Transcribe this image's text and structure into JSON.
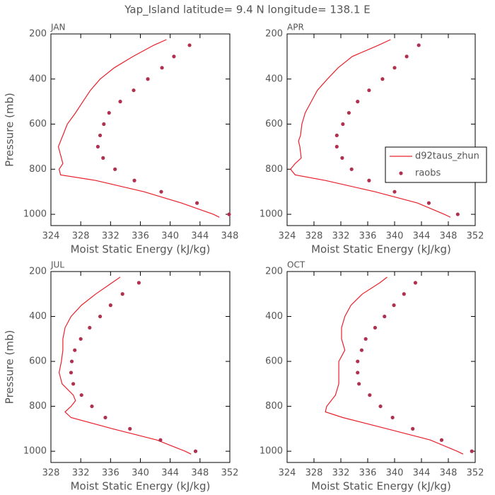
{
  "title": "Yap_Island  latitude= 9.4 N longitude= 138.1 E",
  "chart_data": [
    {
      "type": "line",
      "title": "JAN",
      "xlabel": "Moist Static Energy (kJ/kg)",
      "ylabel": "Pressure (mb)",
      "xlim": [
        324,
        348
      ],
      "xticks": [
        324,
        328,
        332,
        336,
        340,
        344,
        348
      ],
      "ylim": [
        1050,
        200
      ],
      "yticks": [
        200,
        400,
        600,
        800,
        1000
      ],
      "series": [
        {
          "style": "line",
          "color": "#e8202a",
          "x": [
            339.5,
            337.8,
            335.0,
            332.5,
            330.6,
            329.3,
            328.3,
            327.3,
            326.2,
            325.6,
            325.0,
            325.4,
            325.6,
            325.1,
            325.3,
            330.0,
            336.5,
            341.5,
            345.8,
            346.6
          ],
          "y": [
            225,
            250,
            300,
            350,
            400,
            450,
            500,
            550,
            600,
            650,
            700,
            750,
            775,
            800,
            825,
            850,
            900,
            950,
            1000,
            1013
          ]
        },
        {
          "style": "dots",
          "color": "#b03050",
          "x": [
            342.6,
            340.5,
            338.9,
            337.0,
            335.1,
            333.3,
            331.8,
            331.1,
            330.6,
            330.3,
            331.0,
            332.6,
            335.2,
            338.8,
            343.6,
            347.9
          ],
          "y": [
            250,
            300,
            350,
            400,
            450,
            500,
            550,
            600,
            650,
            700,
            750,
            800,
            850,
            900,
            950,
            1000
          ]
        }
      ]
    },
    {
      "type": "line",
      "title": "APR",
      "xlabel": "Moist Static Energy (kJ/kg)",
      "xlim": [
        324,
        352
      ],
      "xticks": [
        324,
        328,
        332,
        336,
        340,
        344,
        348,
        352
      ],
      "ylim": [
        1050,
        200
      ],
      "yticks": [
        200,
        400,
        600,
        800,
        1000
      ],
      "legend": "right",
      "series": [
        {
          "name": "d92taus_zhun",
          "style": "line",
          "color": "#e8202a",
          "x": [
            339.4,
            337.6,
            333.7,
            331.6,
            330.0,
            328.5,
            327.6,
            326.7,
            326.2,
            326.0,
            325.7,
            325.9,
            326.1,
            325.2,
            324.5,
            325.2,
            329.7,
            337.1,
            343.4,
            347.4,
            348.3
          ],
          "y": [
            225,
            250,
            300,
            350,
            400,
            450,
            500,
            550,
            600,
            650,
            675,
            700,
            750,
            775,
            800,
            825,
            850,
            900,
            950,
            1000,
            1013
          ]
        },
        {
          "name": "raobs",
          "style": "dots",
          "color": "#b03050",
          "x": [
            343.6,
            341.8,
            340.0,
            338.2,
            336.2,
            334.5,
            333.2,
            332.3,
            331.4,
            331.4,
            332.2,
            333.6,
            336.2,
            340.0,
            345.1,
            349.4
          ],
          "y": [
            250,
            300,
            350,
            400,
            450,
            500,
            550,
            600,
            650,
            700,
            750,
            800,
            850,
            900,
            950,
            1000
          ]
        }
      ]
    },
    {
      "type": "line",
      "title": "JUL",
      "xlabel": "Moist Static Energy (kJ/kg)",
      "ylabel": "Pressure (mb)",
      "xlim": [
        328,
        352
      ],
      "xticks": [
        328,
        332,
        336,
        340,
        344,
        348,
        352
      ],
      "ylim": [
        1050,
        200
      ],
      "yticks": [
        200,
        400,
        600,
        800,
        1000
      ],
      "series": [
        {
          "style": "line",
          "color": "#e8202a",
          "x": [
            337.3,
            336.2,
            334.0,
            332.1,
            330.7,
            329.9,
            329.6,
            329.6,
            329.4,
            329.1,
            329.5,
            331.0,
            331.3,
            330.7,
            329.9,
            330.7,
            336.3,
            342.2,
            346.0,
            346.8
          ],
          "y": [
            225,
            250,
            300,
            350,
            400,
            450,
            500,
            550,
            600,
            650,
            700,
            750,
            775,
            800,
            825,
            850,
            900,
            950,
            1000,
            1013
          ]
        },
        {
          "style": "dots",
          "color": "#b03050",
          "x": [
            339.8,
            337.6,
            336.0,
            334.6,
            333.2,
            332.0,
            331.2,
            330.8,
            330.7,
            331.0,
            332.1,
            333.5,
            335.3,
            338.6,
            342.7,
            347.4
          ],
          "y": [
            250,
            300,
            350,
            400,
            450,
            500,
            550,
            600,
            650,
            700,
            750,
            800,
            850,
            900,
            950,
            1000
          ]
        }
      ]
    },
    {
      "type": "line",
      "title": "OCT",
      "xlabel": "Moist Static Energy (kJ/kg)",
      "xlim": [
        324,
        352
      ],
      "xticks": [
        324,
        328,
        332,
        336,
        340,
        344,
        348,
        352
      ],
      "ylim": [
        1050,
        200
      ],
      "yticks": [
        200,
        400,
        600,
        800,
        1000
      ],
      "series": [
        {
          "style": "line",
          "color": "#e8202a",
          "x": [
            338.9,
            337.8,
            335.2,
            333.5,
            332.6,
            332.1,
            332.1,
            332.6,
            331.7,
            331.7,
            331.7,
            331.2,
            329.9,
            329.7,
            332.3,
            338.9,
            345.3,
            349.3,
            350.2
          ],
          "y": [
            225,
            250,
            300,
            350,
            400,
            450,
            500,
            550,
            600,
            650,
            700,
            750,
            800,
            825,
            850,
            900,
            950,
            1000,
            1013
          ]
        },
        {
          "style": "dots",
          "color": "#b03050",
          "x": [
            343.1,
            341.4,
            339.9,
            338.5,
            337.1,
            335.7,
            335.1,
            334.5,
            334.5,
            334.7,
            336.3,
            337.9,
            339.7,
            342.7,
            347.0,
            351.5
          ],
          "y": [
            250,
            300,
            350,
            400,
            450,
            500,
            550,
            600,
            650,
            700,
            750,
            800,
            850,
            900,
            950,
            1000
          ]
        }
      ]
    }
  ]
}
